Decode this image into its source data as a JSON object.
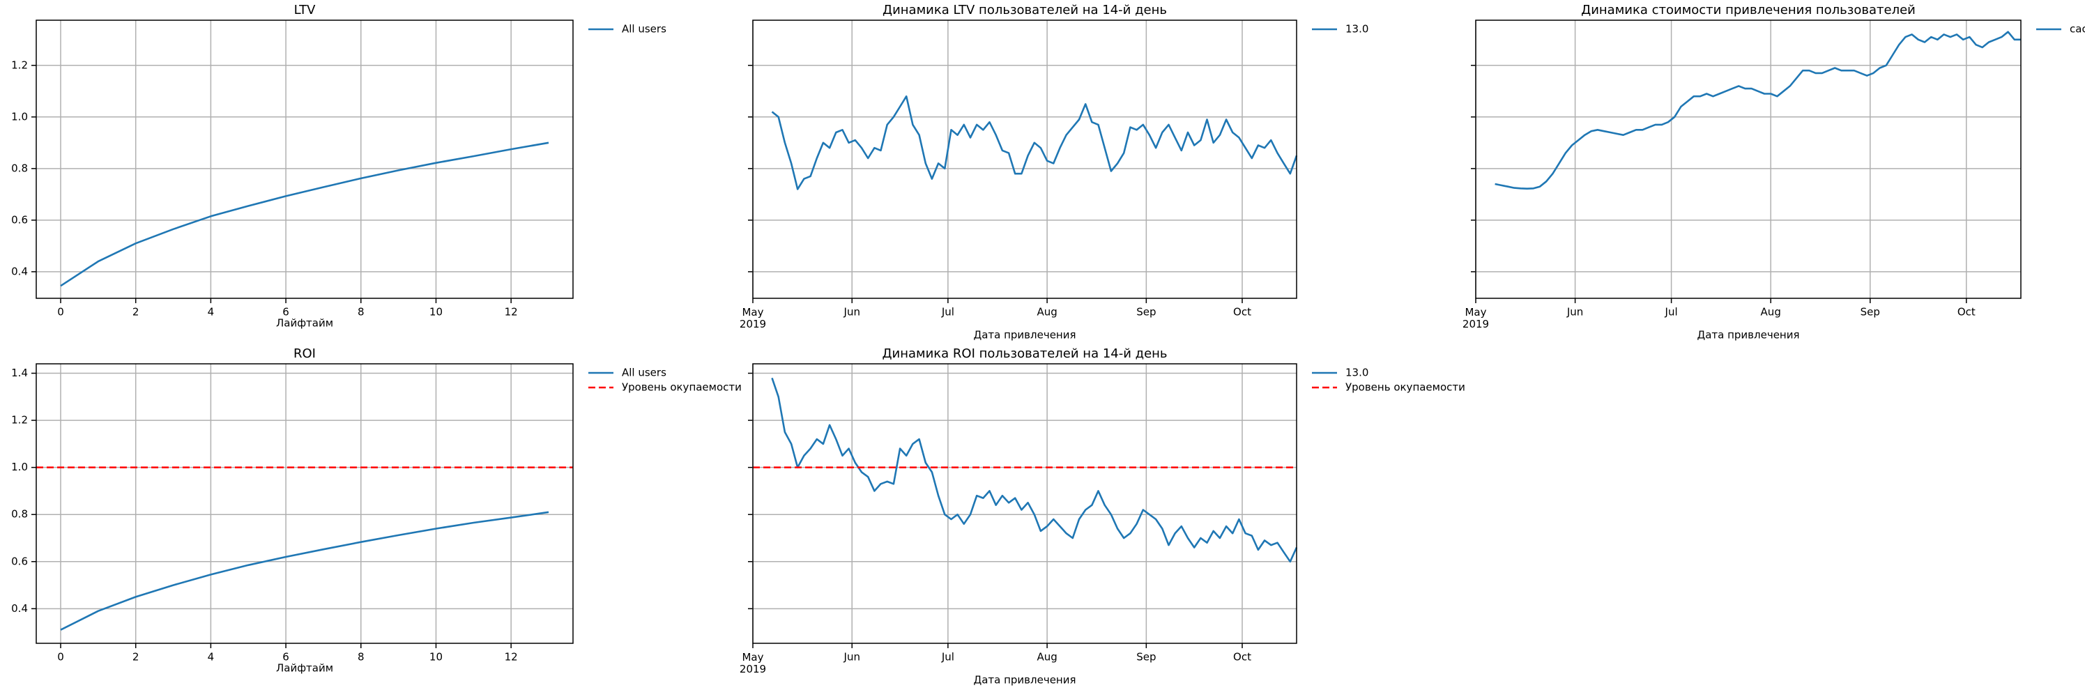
{
  "chart_data": [
    {
      "type": "line",
      "title": "LTV",
      "xlabel": "Лайфтайм",
      "x": [
        0,
        1,
        2,
        3,
        4,
        5,
        6,
        7,
        8,
        9,
        10,
        11,
        12,
        13
      ],
      "series": [
        {
          "name": "All users",
          "color": "#1f77b4",
          "values": [
            0.345,
            0.44,
            0.51,
            0.565,
            0.615,
            0.655,
            0.693,
            0.728,
            0.762,
            0.793,
            0.822,
            0.848,
            0.875,
            0.9
          ]
        }
      ],
      "xlim": [
        -0.65,
        13.65
      ],
      "xticks": [
        0,
        2,
        4,
        6,
        8,
        10,
        12
      ],
      "ylim": [
        0.297,
        1.375
      ],
      "yticks": [
        0.4,
        0.6,
        0.8,
        {
          "value": 1,
          "label": "1.0"
        },
        1.2
      ],
      "show_ytick_labels": true,
      "grid": true
    },
    {
      "type": "line",
      "title": "Динамика LTV пользователей на 14-й день",
      "xlabel": "Дата привлечения",
      "x": [
        6,
        8,
        10,
        12,
        14,
        16,
        18,
        20,
        22,
        24,
        26,
        28,
        30,
        32,
        34,
        36,
        38,
        40,
        42,
        44,
        46,
        48,
        50,
        52,
        54,
        56,
        58,
        60,
        62,
        64,
        66,
        68,
        70,
        72,
        74,
        76,
        78,
        80,
        82,
        84,
        86,
        88,
        90,
        92,
        94,
        96,
        98,
        100,
        102,
        104,
        106,
        108,
        110,
        112,
        114,
        116,
        118,
        120,
        122,
        124,
        126,
        128,
        130,
        132,
        134,
        136,
        138,
        140,
        142,
        144,
        146,
        148,
        150,
        152,
        154,
        156,
        158,
        160,
        162,
        164,
        166,
        168,
        170
      ],
      "series": [
        {
          "name": "13.0",
          "color": "#1f77b4",
          "values": [
            1.02,
            1.0,
            0.9,
            0.82,
            0.72,
            0.76,
            0.77,
            0.84,
            0.9,
            0.88,
            0.94,
            0.95,
            0.9,
            0.91,
            0.88,
            0.84,
            0.88,
            0.87,
            0.97,
            1.0,
            1.04,
            1.08,
            0.97,
            0.93,
            0.82,
            0.76,
            0.82,
            0.8,
            0.95,
            0.93,
            0.97,
            0.92,
            0.97,
            0.95,
            0.98,
            0.93,
            0.87,
            0.86,
            0.78,
            0.78,
            0.85,
            0.9,
            0.88,
            0.83,
            0.82,
            0.88,
            0.93,
            0.96,
            0.99,
            1.05,
            0.98,
            0.97,
            0.88,
            0.79,
            0.82,
            0.86,
            0.96,
            0.95,
            0.97,
            0.93,
            0.88,
            0.94,
            0.97,
            0.92,
            0.87,
            0.94,
            0.89,
            0.91,
            0.99,
            0.9,
            0.93,
            0.99,
            0.94,
            0.92,
            0.88,
            0.84,
            0.89,
            0.88,
            0.91,
            0.86,
            0.82,
            0.78,
            0.85
          ]
        }
      ],
      "xlim": [
        0,
        170
      ],
      "xticks": [
        {
          "value": 0,
          "label": "May\n2019"
        },
        {
          "value": 31,
          "label": "Jun"
        },
        {
          "value": 61,
          "label": "Jul"
        },
        {
          "value": 92,
          "label": "Aug"
        },
        {
          "value": 123,
          "label": "Sep"
        },
        {
          "value": 153,
          "label": "Oct"
        }
      ],
      "ylim": [
        0.297,
        1.375
      ],
      "yticks": [
        0.4,
        0.6,
        0.8,
        {
          "value": 1,
          "label": "1.0"
        },
        1.2
      ],
      "show_ytick_labels": false,
      "grid": true
    },
    {
      "type": "line",
      "title": "Динамика стоимости привлечения пользователей",
      "xlabel": "Дата привлечения",
      "x": [
        6,
        8,
        10,
        12,
        14,
        16,
        18,
        20,
        22,
        24,
        26,
        28,
        30,
        32,
        34,
        36,
        38,
        40,
        42,
        44,
        46,
        48,
        50,
        52,
        54,
        56,
        58,
        60,
        62,
        64,
        66,
        68,
        70,
        72,
        74,
        76,
        78,
        80,
        82,
        84,
        86,
        88,
        90,
        92,
        94,
        96,
        98,
        100,
        102,
        104,
        106,
        108,
        110,
        112,
        114,
        116,
        118,
        120,
        122,
        124,
        126,
        128,
        130,
        132,
        134,
        136,
        138,
        140,
        142,
        144,
        146,
        148,
        150,
        152,
        154,
        156,
        158,
        160,
        162,
        164,
        166,
        168,
        170
      ],
      "series": [
        {
          "name": "cac",
          "color": "#1f77b4",
          "values": [
            0.74,
            0.735,
            0.73,
            0.725,
            0.723,
            0.722,
            0.723,
            0.73,
            0.75,
            0.78,
            0.82,
            0.86,
            0.89,
            0.91,
            0.93,
            0.945,
            0.95,
            0.945,
            0.94,
            0.935,
            0.93,
            0.94,
            0.95,
            0.95,
            0.96,
            0.97,
            0.97,
            0.98,
            1.0,
            1.04,
            1.06,
            1.08,
            1.08,
            1.09,
            1.08,
            1.09,
            1.1,
            1.11,
            1.12,
            1.11,
            1.11,
            1.1,
            1.09,
            1.09,
            1.08,
            1.1,
            1.12,
            1.15,
            1.18,
            1.18,
            1.17,
            1.17,
            1.18,
            1.19,
            1.18,
            1.18,
            1.18,
            1.17,
            1.16,
            1.17,
            1.19,
            1.2,
            1.24,
            1.28,
            1.31,
            1.32,
            1.3,
            1.29,
            1.31,
            1.3,
            1.32,
            1.31,
            1.32,
            1.3,
            1.31,
            1.28,
            1.27,
            1.29,
            1.3,
            1.31,
            1.33,
            1.3,
            1.3
          ]
        }
      ],
      "xlim": [
        0,
        170
      ],
      "xticks": [
        {
          "value": 0,
          "label": "May\n2019"
        },
        {
          "value": 31,
          "label": "Jun"
        },
        {
          "value": 61,
          "label": "Jul"
        },
        {
          "value": 92,
          "label": "Aug"
        },
        {
          "value": 123,
          "label": "Sep"
        },
        {
          "value": 153,
          "label": "Oct"
        }
      ],
      "ylim": [
        0.297,
        1.375
      ],
      "yticks": [
        0.4,
        0.6,
        0.8,
        {
          "value": 1,
          "label": "1.0"
        },
        1.2
      ],
      "show_ytick_labels": false,
      "grid": true
    },
    {
      "type": "line",
      "title": "ROI",
      "xlabel": "Лайфтайм",
      "x": [
        0,
        1,
        2,
        3,
        4,
        5,
        6,
        7,
        8,
        9,
        10,
        11,
        12,
        13
      ],
      "series": [
        {
          "name": "All users",
          "color": "#1f77b4",
          "values": [
            0.31,
            0.39,
            0.45,
            0.5,
            0.545,
            0.585,
            0.62,
            0.652,
            0.683,
            0.712,
            0.74,
            0.765,
            0.787,
            0.81
          ]
        }
      ],
      "reference_line": {
        "name": "Уровень окупаемости",
        "value": 1,
        "color": "red",
        "style": "dashed"
      },
      "xlim": [
        -0.65,
        13.65
      ],
      "xticks": [
        0,
        2,
        4,
        6,
        8,
        10,
        12
      ],
      "ylim": [
        0.253,
        1.44
      ],
      "yticks": [
        0.4,
        0.6,
        0.8,
        {
          "value": 1,
          "label": "1.0"
        },
        1.2,
        1.4
      ],
      "show_ytick_labels": true,
      "grid": true
    },
    {
      "type": "line",
      "title": "Динамика ROI пользователей на 14-й день",
      "xlabel": "Дата привлечения",
      "x": [
        6,
        8,
        10,
        12,
        14,
        16,
        18,
        20,
        22,
        24,
        26,
        28,
        30,
        32,
        34,
        36,
        38,
        40,
        42,
        44,
        46,
        48,
        50,
        52,
        54,
        56,
        58,
        60,
        62,
        64,
        66,
        68,
        70,
        72,
        74,
        76,
        78,
        80,
        82,
        84,
        86,
        88,
        90,
        92,
        94,
        96,
        98,
        100,
        102,
        104,
        106,
        108,
        110,
        112,
        114,
        116,
        118,
        120,
        122,
        124,
        126,
        128,
        130,
        132,
        134,
        136,
        138,
        140,
        142,
        144,
        146,
        148,
        150,
        152,
        154,
        156,
        158,
        160,
        162,
        164,
        166,
        168,
        170
      ],
      "series": [
        {
          "name": "13.0",
          "color": "#1f77b4",
          "values": [
            1.38,
            1.3,
            1.15,
            1.1,
            1.0,
            1.05,
            1.08,
            1.12,
            1.1,
            1.18,
            1.12,
            1.05,
            1.08,
            1.02,
            0.98,
            0.96,
            0.9,
            0.93,
            0.94,
            0.93,
            1.08,
            1.05,
            1.1,
            1.12,
            1.02,
            0.98,
            0.88,
            0.8,
            0.78,
            0.8,
            0.76,
            0.8,
            0.88,
            0.87,
            0.9,
            0.84,
            0.88,
            0.85,
            0.87,
            0.82,
            0.85,
            0.8,
            0.73,
            0.75,
            0.78,
            0.75,
            0.72,
            0.7,
            0.78,
            0.82,
            0.84,
            0.9,
            0.84,
            0.8,
            0.74,
            0.7,
            0.72,
            0.76,
            0.82,
            0.8,
            0.78,
            0.74,
            0.67,
            0.72,
            0.75,
            0.7,
            0.66,
            0.7,
            0.68,
            0.73,
            0.7,
            0.75,
            0.72,
            0.78,
            0.72,
            0.71,
            0.65,
            0.69,
            0.67,
            0.68,
            0.64,
            0.6,
            0.66
          ]
        }
      ],
      "reference_line": {
        "name": "Уровень окупаемости",
        "value": 1,
        "color": "red",
        "style": "dashed"
      },
      "xlim": [
        0,
        170
      ],
      "xticks": [
        {
          "value": 0,
          "label": "May\n2019"
        },
        {
          "value": 31,
          "label": "Jun"
        },
        {
          "value": 61,
          "label": "Jul"
        },
        {
          "value": 92,
          "label": "Aug"
        },
        {
          "value": 123,
          "label": "Sep"
        },
        {
          "value": 153,
          "label": "Oct"
        }
      ],
      "ylim": [
        0.253,
        1.44
      ],
      "yticks": [
        0.4,
        0.6,
        0.8,
        {
          "value": 1,
          "label": "1.0"
        },
        1.2,
        1.4
      ],
      "show_ytick_labels": false,
      "grid": true
    }
  ]
}
